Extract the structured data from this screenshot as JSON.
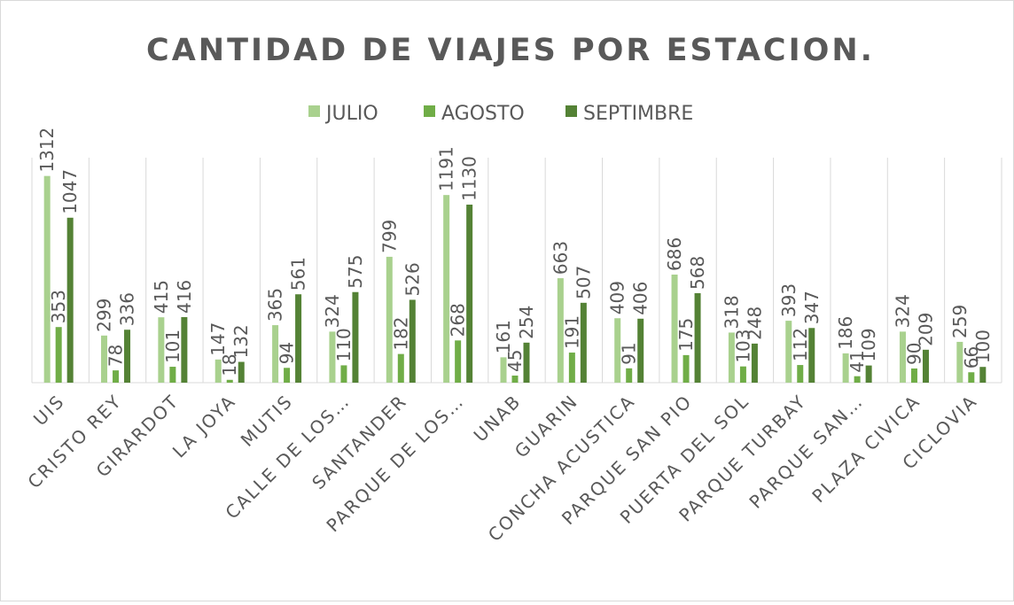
{
  "chart_data": {
    "type": "bar",
    "title": "CANTIDAD DE VIAJES POR ESTACION.",
    "categories": [
      "UIS",
      "CRISTO REY",
      "GIRARDOT",
      "LA JOYA",
      "MUTIS",
      "CALLE DE LOS…",
      "SANTANDER",
      "PARQUE DE LOS…",
      "UNAB",
      "GUARIN",
      "CONCHA ACUSTICA",
      "PARQUE SAN PIO",
      "PUERTA DEL SOL",
      "PARQUE TURBAY",
      "PARQUE SAN…",
      "PLAZA CIVICA",
      "CICLOVIA"
    ],
    "series": [
      {
        "name": "JULIO",
        "color": "#a9d18e",
        "values": [
          1312,
          299,
          415,
          147,
          365,
          324,
          799,
          1191,
          161,
          663,
          409,
          686,
          318,
          393,
          186,
          324,
          259
        ]
      },
      {
        "name": "AGOSTO",
        "color": "#70ad47",
        "values": [
          353,
          78,
          101,
          18,
          94,
          110,
          182,
          268,
          45,
          191,
          91,
          175,
          103,
          112,
          41,
          90,
          66
        ]
      },
      {
        "name": "SEPTIMBRE",
        "color": "#548235",
        "values": [
          1047,
          336,
          416,
          132,
          561,
          575,
          526,
          1130,
          254,
          507,
          406,
          568,
          248,
          347,
          109,
          209,
          100
        ]
      }
    ],
    "ylim": [
      0,
      1400
    ],
    "legend": "top"
  }
}
